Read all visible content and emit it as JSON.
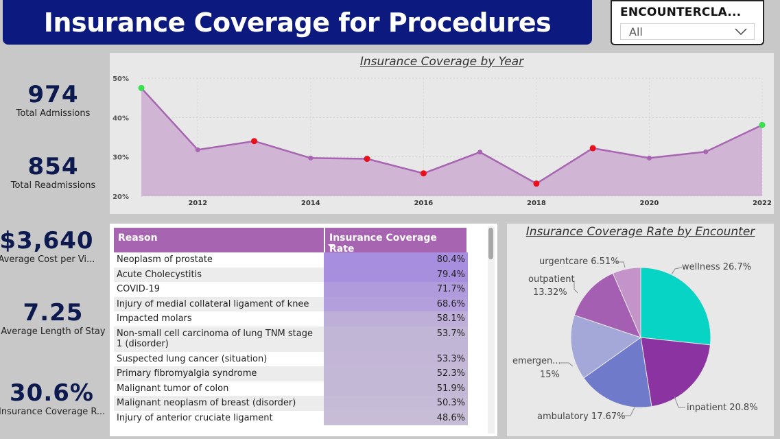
{
  "header": {
    "title": "Insurance Coverage for Procedures"
  },
  "slicer": {
    "title": "ENCOUNTERCLA...",
    "value": "All",
    "icon": "chevron-down-icon"
  },
  "kpis": [
    {
      "value": "974",
      "label": "Total Admissions"
    },
    {
      "value": "854",
      "label": "Total Readmissions"
    },
    {
      "value": "$3,640",
      "label": "Average Cost per Vi..."
    },
    {
      "value": "7.25",
      "label": "Average Length of Stay"
    },
    {
      "value": "30.6%",
      "label": "Insurance Coverage R..."
    }
  ],
  "line_chart": {
    "title": "Insurance Coverage by Year",
    "y_ticks": [
      "50%",
      "40%",
      "30%",
      "20%"
    ],
    "x_ticks": [
      "2012",
      "2014",
      "2016",
      "2018",
      "2020",
      "2022"
    ]
  },
  "table": {
    "col1": "Reason",
    "col2": "Insurance Coverage Rate",
    "rows": [
      {
        "reason": "Neoplasm of prostate",
        "rate": "80.4%",
        "pct": 80.4
      },
      {
        "reason": "Acute Cholecystitis",
        "rate": "79.4%",
        "pct": 79.4
      },
      {
        "reason": "COVID-19",
        "rate": "71.7%",
        "pct": 71.7
      },
      {
        "reason": "Injury of medial collateral ligament of knee",
        "rate": "68.6%",
        "pct": 68.6
      },
      {
        "reason": "Impacted molars",
        "rate": "58.1%",
        "pct": 58.1
      },
      {
        "reason": "Non-small cell carcinoma of lung TNM stage 1 (disorder)",
        "rate": "53.7%",
        "pct": 53.7
      },
      {
        "reason": "Suspected lung cancer (situation)",
        "rate": "53.3%",
        "pct": 53.3
      },
      {
        "reason": "Primary fibromyalgia syndrome",
        "rate": "52.3%",
        "pct": 52.3
      },
      {
        "reason": "Malignant tumor of colon",
        "rate": "51.9%",
        "pct": 51.9
      },
      {
        "reason": "Malignant neoplasm of breast (disorder)",
        "rate": "50.3%",
        "pct": 50.3
      },
      {
        "reason": "Injury of anterior cruciate ligament",
        "rate": "48.6%",
        "pct": 48.6
      }
    ]
  },
  "pie": {
    "title": "Insurance Coverage Rate by Encounter",
    "labels": {
      "wellness": "wellness 26.7%",
      "inpatient": "inpatient 20.8%",
      "ambulatory": "ambulatory 17.67%",
      "emergency_name": "emergen...",
      "emergency_val": "15%",
      "outpatient_name": "outpatient",
      "outpatient_val": "13.32%",
      "urgentcare": "urgentcare 6.51%"
    }
  },
  "chart_data": [
    {
      "type": "line",
      "title": "Insurance Coverage by Year",
      "xlabel": "",
      "ylabel": "",
      "x": [
        2011,
        2012,
        2013,
        2014,
        2015,
        2016,
        2017,
        2018,
        2019,
        2020,
        2021,
        2022
      ],
      "y": [
        47.5,
        31.8,
        34.0,
        29.7,
        29.5,
        25.8,
        31.2,
        23.2,
        32.2,
        29.7,
        31.3,
        38.1
      ],
      "ylim": [
        20,
        50
      ],
      "highlight": [
        "max",
        "min",
        "min",
        "min",
        "min",
        "max",
        "max"
      ],
      "marker_colors": {
        "default": "#a764b1",
        "high": "#37e14b",
        "low": "#e8101a"
      },
      "area_color": "#cfb2d4",
      "line_color": "#a764b1"
    },
    {
      "type": "pie",
      "title": "Insurance Coverage Rate by Encounter",
      "categories": [
        "wellness",
        "inpatient",
        "ambulatory",
        "emergency",
        "outpatient",
        "urgentcare"
      ],
      "values": [
        26.7,
        20.8,
        17.67,
        15.0,
        13.32,
        6.51
      ],
      "colors": [
        "#08d4c5",
        "#8b33a0",
        "#6f7acb",
        "#a4a8d9",
        "#a45fb3",
        "#c393ca"
      ]
    }
  ]
}
